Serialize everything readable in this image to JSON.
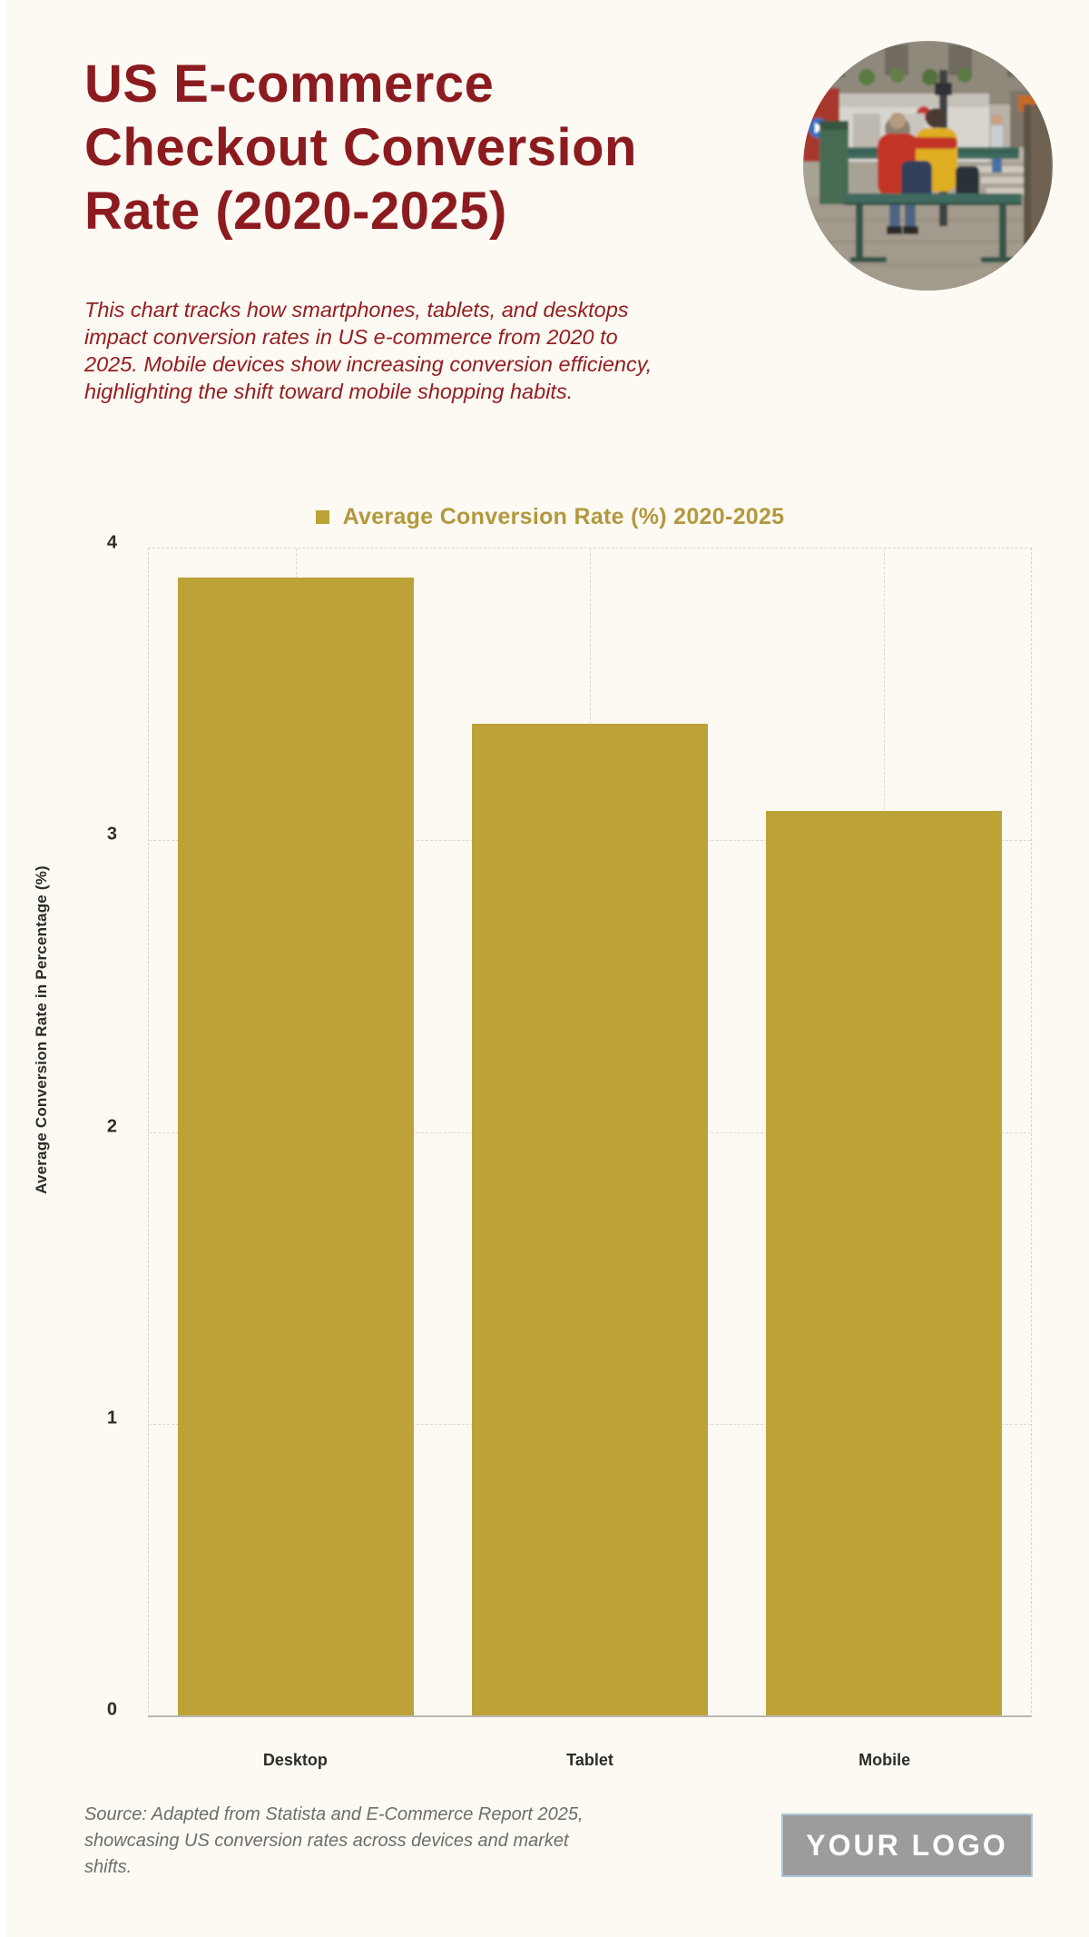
{
  "header": {
    "title": "US E-commerce Checkout Conversion Rate (2020-2025)",
    "description": "This chart tracks how smartphones, tablets, and desktops impact conversion rates in US e-commerce from 2020 to 2025. Mobile devices show increasing conversion efficiency, highlighting the shift toward mobile shopping habits."
  },
  "chart_data": {
    "type": "bar",
    "title": "Average Conversion Rate (%) 2020-2025",
    "categories": [
      "Desktop",
      "Tablet",
      "Mobile"
    ],
    "values": [
      3.9,
      3.4,
      3.1
    ],
    "xlabel": "",
    "ylabel": "Average Conversion Rate in Percentage (%)",
    "ylim": [
      0,
      4
    ],
    "yticks": [
      0,
      1,
      2,
      3,
      4
    ],
    "bar_color": "#bda237",
    "legend_position": "top",
    "grid": true
  },
  "colors": {
    "background": "#fcfaf3",
    "title_red": "#8c1b20",
    "legend_gold": "#b3983d",
    "bar_gold": "#bda237",
    "source_gray": "#6e6d69"
  },
  "footer": {
    "source": "Source: Adapted from Statista and E-Commerce Report 2025, showcasing US conversion rates across devices and market shifts.",
    "logo_text": "YOUR LOGO"
  }
}
